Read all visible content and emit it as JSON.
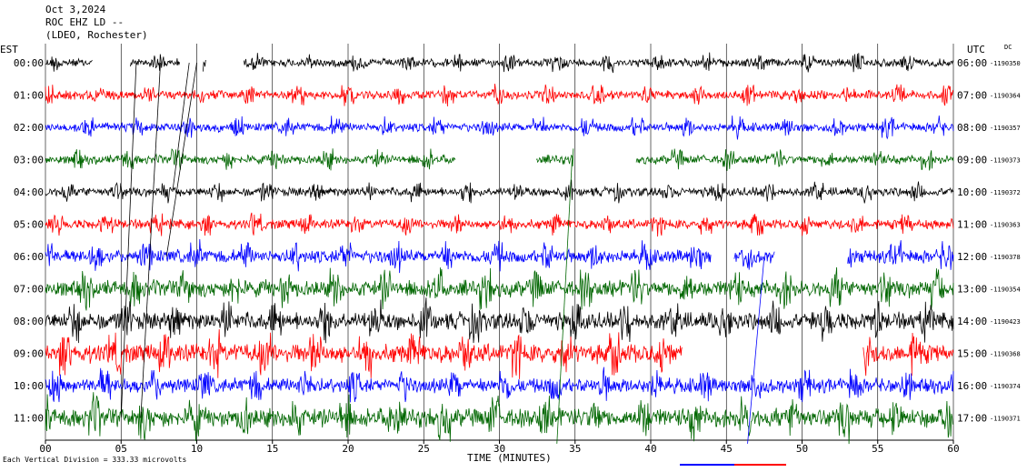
{
  "header": {
    "date": "Oct 3,2024",
    "station": "ROC EHZ LD --",
    "network": "(LDEO, Rochester)"
  },
  "left_tz": "EST",
  "right_tz": "UTC",
  "right_tz_note": "DC",
  "footer": {
    "scale_note": "Each Vertical Division = 333.33 microvolts",
    "xlabel": "TIME (MINUTES)"
  },
  "chart_data": {
    "type": "line",
    "title": "Oct 3,2024",
    "xlabel": "TIME (MINUTES)",
    "ylabel": "",
    "xlim": [
      0,
      60
    ],
    "x_ticks": [
      "00",
      "05",
      "10",
      "15",
      "20",
      "25",
      "30",
      "35",
      "40",
      "45",
      "50",
      "55",
      "60"
    ],
    "grid": "vertical lines every 5 minutes",
    "rows": [
      {
        "est": "00:00",
        "utc": "06:00",
        "dc": "-1190350",
        "color": "#000000",
        "gaps": [
          [
            3.1,
            5.6
          ],
          [
            8.9,
            10.4
          ],
          [
            10.6,
            13.1
          ]
        ],
        "noise": 0.25
      },
      {
        "est": "01:00",
        "utc": "07:00",
        "dc": "-1190364",
        "color": "#ff0000",
        "gaps": [],
        "noise": 0.3
      },
      {
        "est": "02:00",
        "utc": "08:00",
        "dc": "-1190357",
        "color": "#0000ff",
        "gaps": [],
        "noise": 0.3
      },
      {
        "est": "03:00",
        "utc": "09:00",
        "dc": "-1190373",
        "color": "#006600",
        "gaps": [
          [
            27.1,
            32.4
          ],
          [
            34.9,
            39.0
          ]
        ],
        "noise": 0.3
      },
      {
        "est": "04:00",
        "utc": "10:00",
        "dc": "-1190372",
        "color": "#000000",
        "gaps": [],
        "noise": 0.3
      },
      {
        "est": "05:00",
        "utc": "11:00",
        "dc": "-1190363",
        "color": "#ff0000",
        "gaps": [],
        "noise": 0.35
      },
      {
        "est": "06:00",
        "utc": "12:00",
        "dc": "-1190378",
        "color": "#0000ff",
        "gaps": [
          [
            44.0,
            45.5
          ],
          [
            48.2,
            53.0
          ]
        ],
        "noise": 0.6
      },
      {
        "est": "07:00",
        "utc": "13:00",
        "dc": "-1190354",
        "color": "#006600",
        "gaps": [],
        "noise": 0.85
      },
      {
        "est": "08:00",
        "utc": "14:00",
        "dc": "-1190423",
        "color": "#000000",
        "gaps": [],
        "noise": 0.9
      },
      {
        "est": "09:00",
        "utc": "15:00",
        "dc": "-1190368",
        "color": "#ff0000",
        "gaps": [
          [
            42.1,
            54.0
          ]
        ],
        "noise": 1.0
      },
      {
        "est": "10:00",
        "utc": "16:00",
        "dc": "-1190374",
        "color": "#0000ff",
        "gaps": [],
        "noise": 0.7
      },
      {
        "est": "11:00",
        "utc": "17:00",
        "dc": "-1190371",
        "color": "#006600",
        "gaps": [],
        "noise": 1.0
      }
    ]
  }
}
